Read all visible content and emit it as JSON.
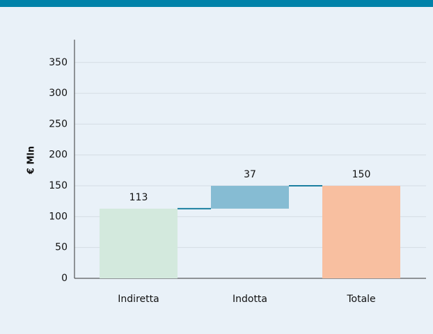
{
  "chart_data": {
    "type": "waterfall",
    "y_label": "€ Mln",
    "categories": [
      "Indiretta",
      "Indotta",
      "Totale"
    ],
    "values": [
      113,
      37,
      150
    ],
    "is_total": [
      false,
      false,
      true
    ],
    "colors": [
      "#d3e9dd",
      "#86bcd3",
      "#f8bfa0"
    ],
    "connector_color": "#1a7fa0",
    "ylim": [
      0,
      387
    ],
    "yticks": [
      0,
      50,
      100,
      150,
      200,
      250,
      300,
      350
    ],
    "grid": true
  }
}
